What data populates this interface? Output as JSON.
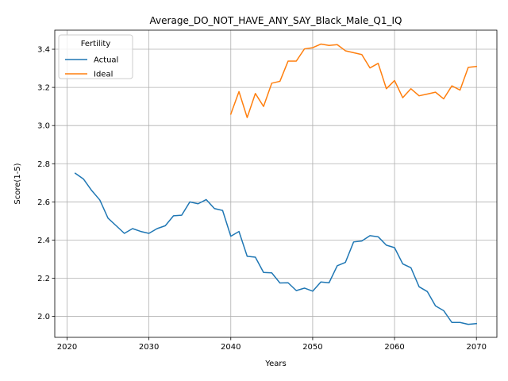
{
  "chart_data": {
    "type": "line",
    "title": "Average_DO_NOT_HAVE_ANY_SAY_Black_Male_Q1_IQ",
    "xlabel": "Years",
    "ylabel": "Score(1-5)",
    "xlim": [
      2018.5,
      2072.5
    ],
    "ylim": [
      1.89,
      3.5
    ],
    "xticks": [
      2020,
      2030,
      2040,
      2050,
      2060,
      2070
    ],
    "yticks": [
      2.0,
      2.2,
      2.4,
      2.6,
      2.8,
      3.0,
      3.2,
      3.4
    ],
    "ytick_labels": [
      "2.0",
      "2.2",
      "2.4",
      "2.6",
      "2.8",
      "3.0",
      "3.2",
      "3.4"
    ],
    "grid": true,
    "legend": {
      "title": "Fertility",
      "placement": "top-left"
    },
    "series": [
      {
        "name": "Actual",
        "color": "#1f77b4",
        "x": [
          2021,
          2022,
          2023,
          2024,
          2025,
          2026,
          2027,
          2028,
          2029,
          2030,
          2031,
          2032,
          2033,
          2034,
          2035,
          2036,
          2037,
          2038,
          2039,
          2040,
          2041,
          2042,
          2043,
          2044,
          2045,
          2046,
          2047,
          2048,
          2049,
          2050,
          2051,
          2052,
          2053,
          2054,
          2055,
          2056,
          2057,
          2058,
          2059,
          2060,
          2061,
          2062,
          2063,
          2064,
          2065,
          2066,
          2067,
          2068,
          2069,
          2070
        ],
        "y": [
          2.75,
          2.72,
          2.66,
          2.61,
          2.515,
          2.475,
          2.435,
          2.46,
          2.445,
          2.435,
          2.46,
          2.475,
          2.527,
          2.53,
          2.6,
          2.59,
          2.612,
          2.565,
          2.555,
          2.42,
          2.445,
          2.315,
          2.31,
          2.23,
          2.228,
          2.175,
          2.176,
          2.135,
          2.148,
          2.132,
          2.18,
          2.176,
          2.265,
          2.283,
          2.39,
          2.395,
          2.423,
          2.417,
          2.373,
          2.36,
          2.275,
          2.255,
          2.155,
          2.13,
          2.055,
          2.03,
          1.968,
          1.968,
          1.958,
          1.962
        ]
      },
      {
        "name": "Ideal",
        "color": "#ff7f0e",
        "x": [
          2040,
          2041,
          2042,
          2043,
          2044,
          2045,
          2046,
          2047,
          2048,
          2049,
          2050,
          2051,
          2052,
          2053,
          2054,
          2055,
          2056,
          2057,
          2058,
          2059,
          2060,
          2061,
          2062,
          2063,
          2064,
          2065,
          2066,
          2067,
          2068,
          2069,
          2070
        ],
        "y": [
          3.06,
          3.178,
          3.042,
          3.168,
          3.1,
          3.222,
          3.232,
          3.338,
          3.338,
          3.402,
          3.408,
          3.427,
          3.42,
          3.424,
          3.392,
          3.382,
          3.372,
          3.302,
          3.326,
          3.193,
          3.236,
          3.146,
          3.193,
          3.156,
          3.165,
          3.175,
          3.14,
          3.208,
          3.186,
          3.305,
          3.31
        ]
      }
    ]
  }
}
